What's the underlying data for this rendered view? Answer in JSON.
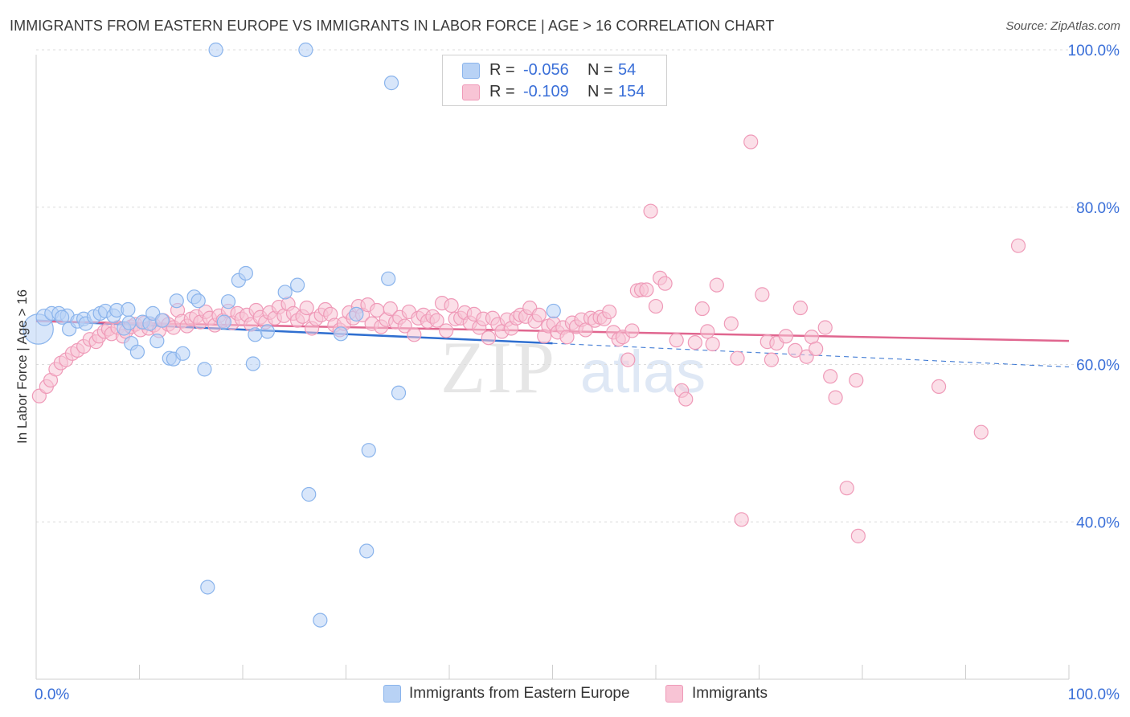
{
  "title": "IMMIGRANTS FROM EASTERN EUROPE VS IMMIGRANTS IN LABOR FORCE | AGE > 16 CORRELATION CHART",
  "source": "Source: ZipAtlas.com",
  "watermark": {
    "zip": "ZIP",
    "atlas": "atlas"
  },
  "colors": {
    "blue": "#8ab4ec",
    "blue_fill": "#b8d2f5",
    "blue_line": "#2f6fd0",
    "pink": "#ef9ab8",
    "pink_fill": "#f8c4d5",
    "pink_line": "#e0668f",
    "axis_text": "#3a6fd8"
  },
  "legend": {
    "rows": [
      {
        "r_label": "R =",
        "r_value": "-0.056",
        "n_label": "N =",
        "n_value": "54"
      },
      {
        "r_label": "R =",
        "r_value": "-0.109",
        "n_label": "N =",
        "n_value": "154"
      }
    ]
  },
  "bottom_legend": {
    "series1": "Immigrants from Eastern Europe",
    "series2": "Immigrants"
  },
  "chart_data": {
    "type": "scatter",
    "xlabel": "",
    "ylabel": "In Labor Force | Age > 16",
    "xlim": [
      0,
      100
    ],
    "ylim": [
      20,
      100
    ],
    "x_tick_labels": [
      "0.0%",
      "100.0%"
    ],
    "y_tick_labels": [
      "40.0%",
      "60.0%",
      "80.0%",
      "100.0%"
    ],
    "y_ticks": [
      40,
      60,
      80,
      100
    ],
    "grid": true,
    "legend_position": "top-center",
    "series": [
      {
        "name": "Immigrants from Eastern Europe",
        "color": "blue",
        "points": [
          [
            0.2,
            64.5,
            2.2
          ],
          [
            0.8,
            66,
            1.2
          ],
          [
            1.5,
            66.5,
            1
          ],
          [
            2.2,
            66.5,
            1
          ],
          [
            3.0,
            66.2,
            1
          ],
          [
            3.2,
            64.5,
            1
          ],
          [
            4.0,
            65.5,
            1
          ],
          [
            4.6,
            65.8,
            1
          ],
          [
            4.8,
            65.2,
            1
          ],
          [
            5.6,
            66.1,
            1
          ],
          [
            6.2,
            66.5,
            1
          ],
          [
            6.7,
            66.8,
            1
          ],
          [
            7.5,
            66.2,
            1
          ],
          [
            7.8,
            66.9,
            1
          ],
          [
            8.5,
            64.6,
            1
          ],
          [
            8.9,
            67.0,
            1
          ],
          [
            9.2,
            62.7,
            1
          ],
          [
            9.8,
            61.6,
            1
          ],
          [
            10.3,
            65.4,
            1
          ],
          [
            11.0,
            65.2,
            1
          ],
          [
            11.3,
            66.5,
            1
          ],
          [
            11.7,
            63.0,
            1
          ],
          [
            12.2,
            65.6,
            1
          ],
          [
            12.9,
            60.8,
            1
          ],
          [
            13.3,
            60.7,
            1
          ],
          [
            13.6,
            68.1,
            1
          ],
          [
            14.2,
            61.4,
            1
          ],
          [
            15.3,
            68.6,
            1
          ],
          [
            15.7,
            68.1,
            1
          ],
          [
            16.3,
            59.4,
            1
          ],
          [
            17.4,
            100,
            1
          ],
          [
            18.2,
            65.4,
            1
          ],
          [
            18.6,
            68.0,
            1
          ],
          [
            19.6,
            70.7,
            1
          ],
          [
            20.3,
            71.6,
            1
          ],
          [
            21.0,
            60.1,
            1
          ],
          [
            21.2,
            63.8,
            1
          ],
          [
            22.4,
            64.2,
            1
          ],
          [
            24.1,
            69.2,
            1
          ],
          [
            25.3,
            70.1,
            1
          ],
          [
            26.1,
            100,
            1
          ],
          [
            26.4,
            43.5,
            1
          ],
          [
            27.5,
            27.5,
            1
          ],
          [
            29.5,
            63.9,
            1
          ],
          [
            31.0,
            66.4,
            1
          ],
          [
            32.0,
            36.3,
            1
          ],
          [
            32.2,
            49.1,
            1
          ],
          [
            34.1,
            70.9,
            1
          ],
          [
            34.4,
            95.8,
            1
          ],
          [
            35.1,
            56.4,
            1
          ],
          [
            50.1,
            66.8,
            1
          ],
          [
            16.6,
            31.7,
            1
          ],
          [
            9.0,
            65.3,
            1
          ],
          [
            2.5,
            66.0,
            1
          ]
        ]
      },
      {
        "name": "Immigrants",
        "color": "pink",
        "points": [
          [
            0.3,
            56.0,
            1
          ],
          [
            1.0,
            57.2,
            1
          ],
          [
            1.4,
            58.0,
            1
          ],
          [
            1.9,
            59.4,
            1
          ],
          [
            2.4,
            60.2,
            1
          ],
          [
            2.9,
            60.6,
            1
          ],
          [
            3.5,
            61.4,
            1
          ],
          [
            4.0,
            61.8,
            1
          ],
          [
            4.6,
            62.3,
            1
          ],
          [
            5.2,
            63.2,
            1
          ],
          [
            5.8,
            62.9,
            1
          ],
          [
            6.1,
            63.6,
            1
          ],
          [
            6.6,
            64.2,
            1
          ],
          [
            7.0,
            64.5,
            1
          ],
          [
            7.3,
            63.9,
            1
          ],
          [
            7.9,
            64.7,
            1
          ],
          [
            8.4,
            63.6,
            1
          ],
          [
            8.7,
            64.2,
            1
          ],
          [
            9.2,
            64.8,
            1
          ],
          [
            9.6,
            65.1,
            1
          ],
          [
            10.1,
            64.4,
            1
          ],
          [
            10.5,
            65.3,
            1
          ],
          [
            10.9,
            64.6,
            1
          ],
          [
            11.4,
            65.0,
            1
          ],
          [
            11.9,
            64.3,
            1
          ],
          [
            12.3,
            65.6,
            1
          ],
          [
            12.8,
            65.1,
            1
          ],
          [
            13.3,
            64.7,
            1
          ],
          [
            13.7,
            66.9,
            1
          ],
          [
            14.1,
            65.5,
            1
          ],
          [
            14.6,
            64.9,
            1
          ],
          [
            15.0,
            65.8,
            1
          ],
          [
            15.5,
            66.1,
            1
          ],
          [
            15.9,
            65.4,
            1
          ],
          [
            16.4,
            66.7,
            1
          ],
          [
            16.8,
            65.9,
            1
          ],
          [
            17.3,
            65.0,
            1
          ],
          [
            17.7,
            66.2,
            1
          ],
          [
            18.1,
            65.6,
            1
          ],
          [
            18.6,
            66.8,
            1
          ],
          [
            19.0,
            65.3,
            1
          ],
          [
            19.5,
            66.5,
            1
          ],
          [
            19.9,
            65.8,
            1
          ],
          [
            20.4,
            66.3,
            1
          ],
          [
            20.8,
            65.1,
            1
          ],
          [
            21.3,
            66.9,
            1
          ],
          [
            21.7,
            66.0,
            1
          ],
          [
            22.2,
            65.4,
            1
          ],
          [
            22.6,
            66.6,
            1
          ],
          [
            23.1,
            65.9,
            1
          ],
          [
            23.5,
            67.3,
            1
          ],
          [
            24.0,
            66.2,
            1
          ],
          [
            24.4,
            67.7,
            1
          ],
          [
            24.9,
            66.5,
            1
          ],
          [
            25.3,
            65.6,
            1
          ],
          [
            25.8,
            66.1,
            1
          ],
          [
            26.2,
            67.2,
            1
          ],
          [
            26.7,
            64.6,
            1
          ],
          [
            27.1,
            65.8,
            1
          ],
          [
            27.6,
            66.3,
            1
          ],
          [
            28.0,
            67.0,
            1
          ],
          [
            28.5,
            66.4,
            1
          ],
          [
            28.9,
            65.0,
            1
          ],
          [
            29.4,
            64.4,
            1
          ],
          [
            29.8,
            65.2,
            1
          ],
          [
            30.3,
            66.6,
            1
          ],
          [
            30.7,
            65.9,
            1
          ],
          [
            31.2,
            67.4,
            1
          ],
          [
            31.6,
            66.3,
            1
          ],
          [
            32.1,
            67.6,
            1
          ],
          [
            32.5,
            65.2,
            1
          ],
          [
            33.0,
            66.9,
            1
          ],
          [
            33.4,
            64.8,
            1
          ],
          [
            33.9,
            65.7,
            1
          ],
          [
            34.3,
            67.1,
            1
          ],
          [
            34.8,
            65.4,
            1
          ],
          [
            35.2,
            66.0,
            1
          ],
          [
            35.7,
            64.9,
            1
          ],
          [
            36.1,
            66.7,
            1
          ],
          [
            36.6,
            63.8,
            1
          ],
          [
            37.0,
            65.9,
            1
          ],
          [
            37.5,
            66.3,
            1
          ],
          [
            37.9,
            65.5,
            1
          ],
          [
            38.4,
            66.1,
            1
          ],
          [
            38.8,
            65.6,
            1
          ],
          [
            39.3,
            67.8,
            1
          ],
          [
            39.7,
            64.3,
            1
          ],
          [
            40.2,
            67.5,
            1
          ],
          [
            40.6,
            65.8,
            1
          ],
          [
            41.1,
            65.9,
            1
          ],
          [
            41.5,
            66.6,
            1
          ],
          [
            42.0,
            65.3,
            1
          ],
          [
            42.4,
            66.4,
            1
          ],
          [
            42.9,
            64.7,
            1
          ],
          [
            43.3,
            65.8,
            1
          ],
          [
            43.8,
            63.4,
            1
          ],
          [
            44.2,
            65.9,
            1
          ],
          [
            44.7,
            65.1,
            1
          ],
          [
            45.1,
            64.2,
            1
          ],
          [
            45.6,
            65.7,
            1
          ],
          [
            46.0,
            64.6,
            1
          ],
          [
            46.5,
            65.9,
            1
          ],
          [
            46.9,
            66.3,
            1
          ],
          [
            47.4,
            66.1,
            1
          ],
          [
            47.8,
            67.2,
            1
          ],
          [
            48.3,
            65.5,
            1
          ],
          [
            48.7,
            66.3,
            1
          ],
          [
            49.2,
            63.6,
            1
          ],
          [
            49.6,
            64.9,
            1
          ],
          [
            50.1,
            65.2,
            1
          ],
          [
            50.5,
            64.1,
            1
          ],
          [
            51.0,
            64.7,
            1
          ],
          [
            51.4,
            63.5,
            1
          ],
          [
            51.9,
            65.3,
            1
          ],
          [
            52.3,
            64.8,
            1
          ],
          [
            52.8,
            65.7,
            1
          ],
          [
            53.2,
            64.4,
            1
          ],
          [
            53.7,
            65.9,
            1
          ],
          [
            54.1,
            65.6,
            1
          ],
          [
            54.6,
            66.0,
            1
          ],
          [
            55.0,
            65.8,
            1
          ],
          [
            55.5,
            66.7,
            1
          ],
          [
            55.9,
            64.1,
            1
          ],
          [
            56.4,
            63.2,
            1
          ],
          [
            56.8,
            63.5,
            1
          ],
          [
            57.3,
            60.6,
            1
          ],
          [
            57.7,
            64.3,
            1
          ],
          [
            58.2,
            69.4,
            1
          ],
          [
            58.6,
            69.5,
            1
          ],
          [
            59.1,
            69.5,
            1
          ],
          [
            59.5,
            79.5,
            1
          ],
          [
            60.0,
            67.4,
            1
          ],
          [
            60.4,
            71.0,
            1
          ],
          [
            60.9,
            70.3,
            1
          ],
          [
            62.0,
            63.1,
            1
          ],
          [
            62.5,
            56.7,
            1
          ],
          [
            62.9,
            55.6,
            1
          ],
          [
            63.8,
            62.8,
            1
          ],
          [
            64.5,
            67.1,
            1
          ],
          [
            65.0,
            64.2,
            1
          ],
          [
            65.5,
            62.6,
            1
          ],
          [
            65.9,
            70.1,
            1
          ],
          [
            67.3,
            65.2,
            1
          ],
          [
            67.9,
            60.8,
            1
          ],
          [
            68.3,
            40.3,
            1
          ],
          [
            69.2,
            88.3,
            1
          ],
          [
            70.3,
            68.9,
            1
          ],
          [
            70.8,
            62.9,
            1
          ],
          [
            71.2,
            60.6,
            1
          ],
          [
            71.7,
            62.7,
            1
          ],
          [
            72.6,
            63.6,
            1
          ],
          [
            73.5,
            61.8,
            1
          ],
          [
            74.0,
            67.2,
            1
          ],
          [
            74.6,
            61.0,
            1
          ],
          [
            75.1,
            63.5,
            1
          ],
          [
            75.5,
            62.0,
            1
          ],
          [
            76.4,
            64.7,
            1
          ],
          [
            76.9,
            58.5,
            1
          ],
          [
            77.4,
            55.8,
            1
          ],
          [
            78.5,
            44.3,
            1
          ],
          [
            79.4,
            58.0,
            1
          ],
          [
            79.6,
            38.2,
            1
          ],
          [
            87.4,
            57.2,
            1
          ],
          [
            91.5,
            51.4,
            1
          ],
          [
            95.1,
            75.1,
            1
          ]
        ]
      }
    ],
    "trend_lines": [
      {
        "series": "Immigrants from Eastern Europe",
        "x0": 0,
        "y0": 65.6,
        "x1": 50.0,
        "y1": 62.7,
        "dashed_to_x": 100,
        "dashed_to_y": 59.7
      },
      {
        "series": "Immigrants",
        "x0": 0,
        "y0": 65.5,
        "x1": 100,
        "y1": 63.0
      }
    ]
  }
}
